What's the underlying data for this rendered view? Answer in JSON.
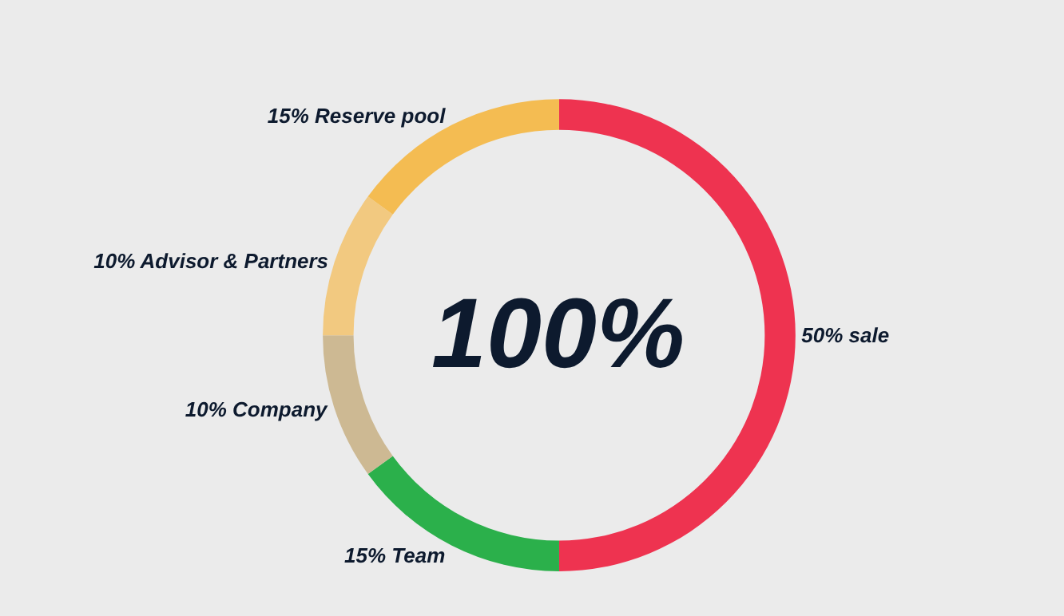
{
  "chart_data": {
    "type": "donut",
    "categories": [
      "50% sale",
      "15% Team",
      "10% Company",
      "10% Advisor & Partners",
      "15% Reserve pool"
    ],
    "values": [
      50,
      15,
      10,
      10,
      15
    ],
    "colors": [
      "#ee3350",
      "#2bb04b",
      "#cdb993",
      "#f2c980",
      "#f4bc52"
    ],
    "annotations": [
      "100%"
    ],
    "legend": false
  }
}
